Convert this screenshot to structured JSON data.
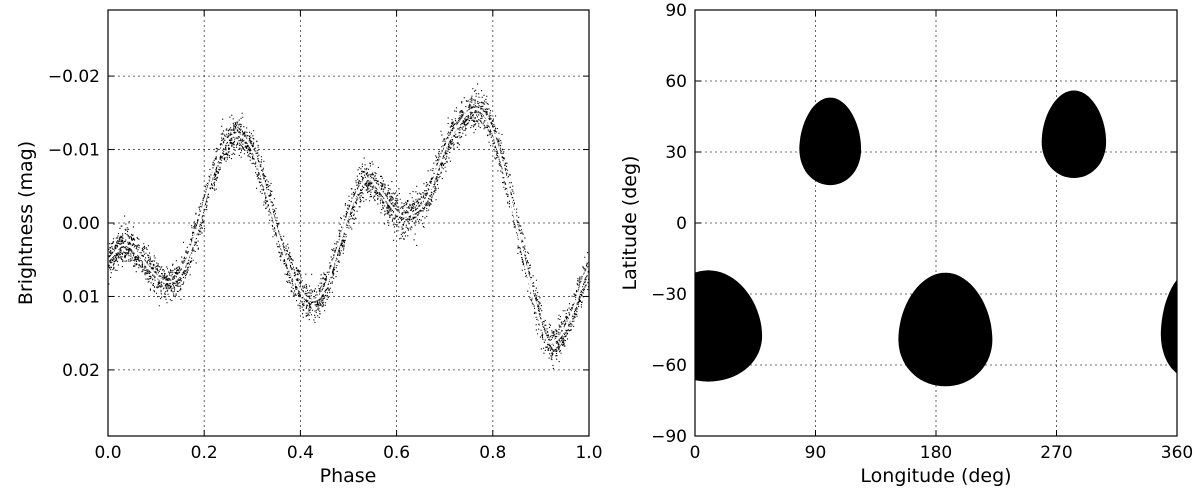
{
  "chart_data": [
    {
      "type": "scatter",
      "title": "",
      "xlabel": "Phase",
      "ylabel": "Brightness (mag)",
      "xlim": [
        0.0,
        1.0
      ],
      "ylim": [
        0.029,
        -0.029
      ],
      "y_inverted": true,
      "grid": true,
      "x_ticks": [
        "0.0",
        "0.2",
        "0.4",
        "0.6",
        "0.8",
        "1.0"
      ],
      "y_ticks": [
        "−0.02",
        "−0.01",
        "0.00",
        "0.01",
        "0.02"
      ],
      "scatter_color": "#000000",
      "model_line_color": "#ffffff",
      "series": [
        {
          "name": "",
          "style": "model curve (white line over black scatter)",
          "x": [
            0.0,
            0.03,
            0.06,
            0.09,
            0.12,
            0.15,
            0.18,
            0.21,
            0.24,
            0.27,
            0.3,
            0.33,
            0.36,
            0.39,
            0.42,
            0.45,
            0.48,
            0.51,
            0.54,
            0.57,
            0.6,
            0.62,
            0.66,
            0.7,
            0.73,
            0.76,
            0.79,
            0.82,
            0.85,
            0.88,
            0.91,
            0.93,
            0.96,
            1.0
          ],
          "y": [
            0.005,
            0.003,
            0.004,
            0.0065,
            0.008,
            0.007,
            0.002,
            -0.005,
            -0.0105,
            -0.012,
            -0.01,
            -0.004,
            0.003,
            0.008,
            0.0105,
            0.009,
            0.003,
            -0.003,
            -0.006,
            -0.004,
            -0.0015,
            -0.001,
            -0.003,
            -0.01,
            -0.0135,
            -0.0155,
            -0.014,
            -0.008,
            0.0005,
            0.009,
            0.0155,
            0.016,
            0.013,
            0.006
          ]
        }
      ],
      "scatter_spread": 0.0012
    },
    {
      "type": "map",
      "title": "",
      "xlabel": "Longitude (deg)",
      "ylabel": "Latitude (deg)",
      "xlim": [
        0,
        360
      ],
      "ylim": [
        -90,
        90
      ],
      "grid": true,
      "x_ticks": [
        0,
        90,
        180,
        270,
        360
      ],
      "y_ticks": [
        90,
        60,
        30,
        0,
        -30,
        -60,
        -90
      ],
      "y_tick_labels": [
        "90",
        "60",
        "30",
        "0",
        "−30",
        "−60",
        "−90"
      ],
      "spot_color": "#000000",
      "spots": [
        {
          "lon": 101,
          "lat": 35,
          "lon_halfwidth": 23,
          "lat_top": 53,
          "lat_bottom": 16
        },
        {
          "lon": 283,
          "lat": 38,
          "lon_halfwidth": 24,
          "lat_top": 56,
          "lat_bottom": 19
        },
        {
          "lon": 10,
          "lat": -43,
          "lon_halfwidth": 40,
          "lat_top": -20,
          "lat_bottom": -67
        },
        {
          "lon": 187,
          "lat": -47,
          "lon_halfwidth": 35,
          "lat_top": -21,
          "lat_bottom": -69
        },
        {
          "lon": 372,
          "lat": -45,
          "lon_halfwidth": 24,
          "lat_top": -20,
          "lat_bottom": -66
        }
      ]
    }
  ]
}
